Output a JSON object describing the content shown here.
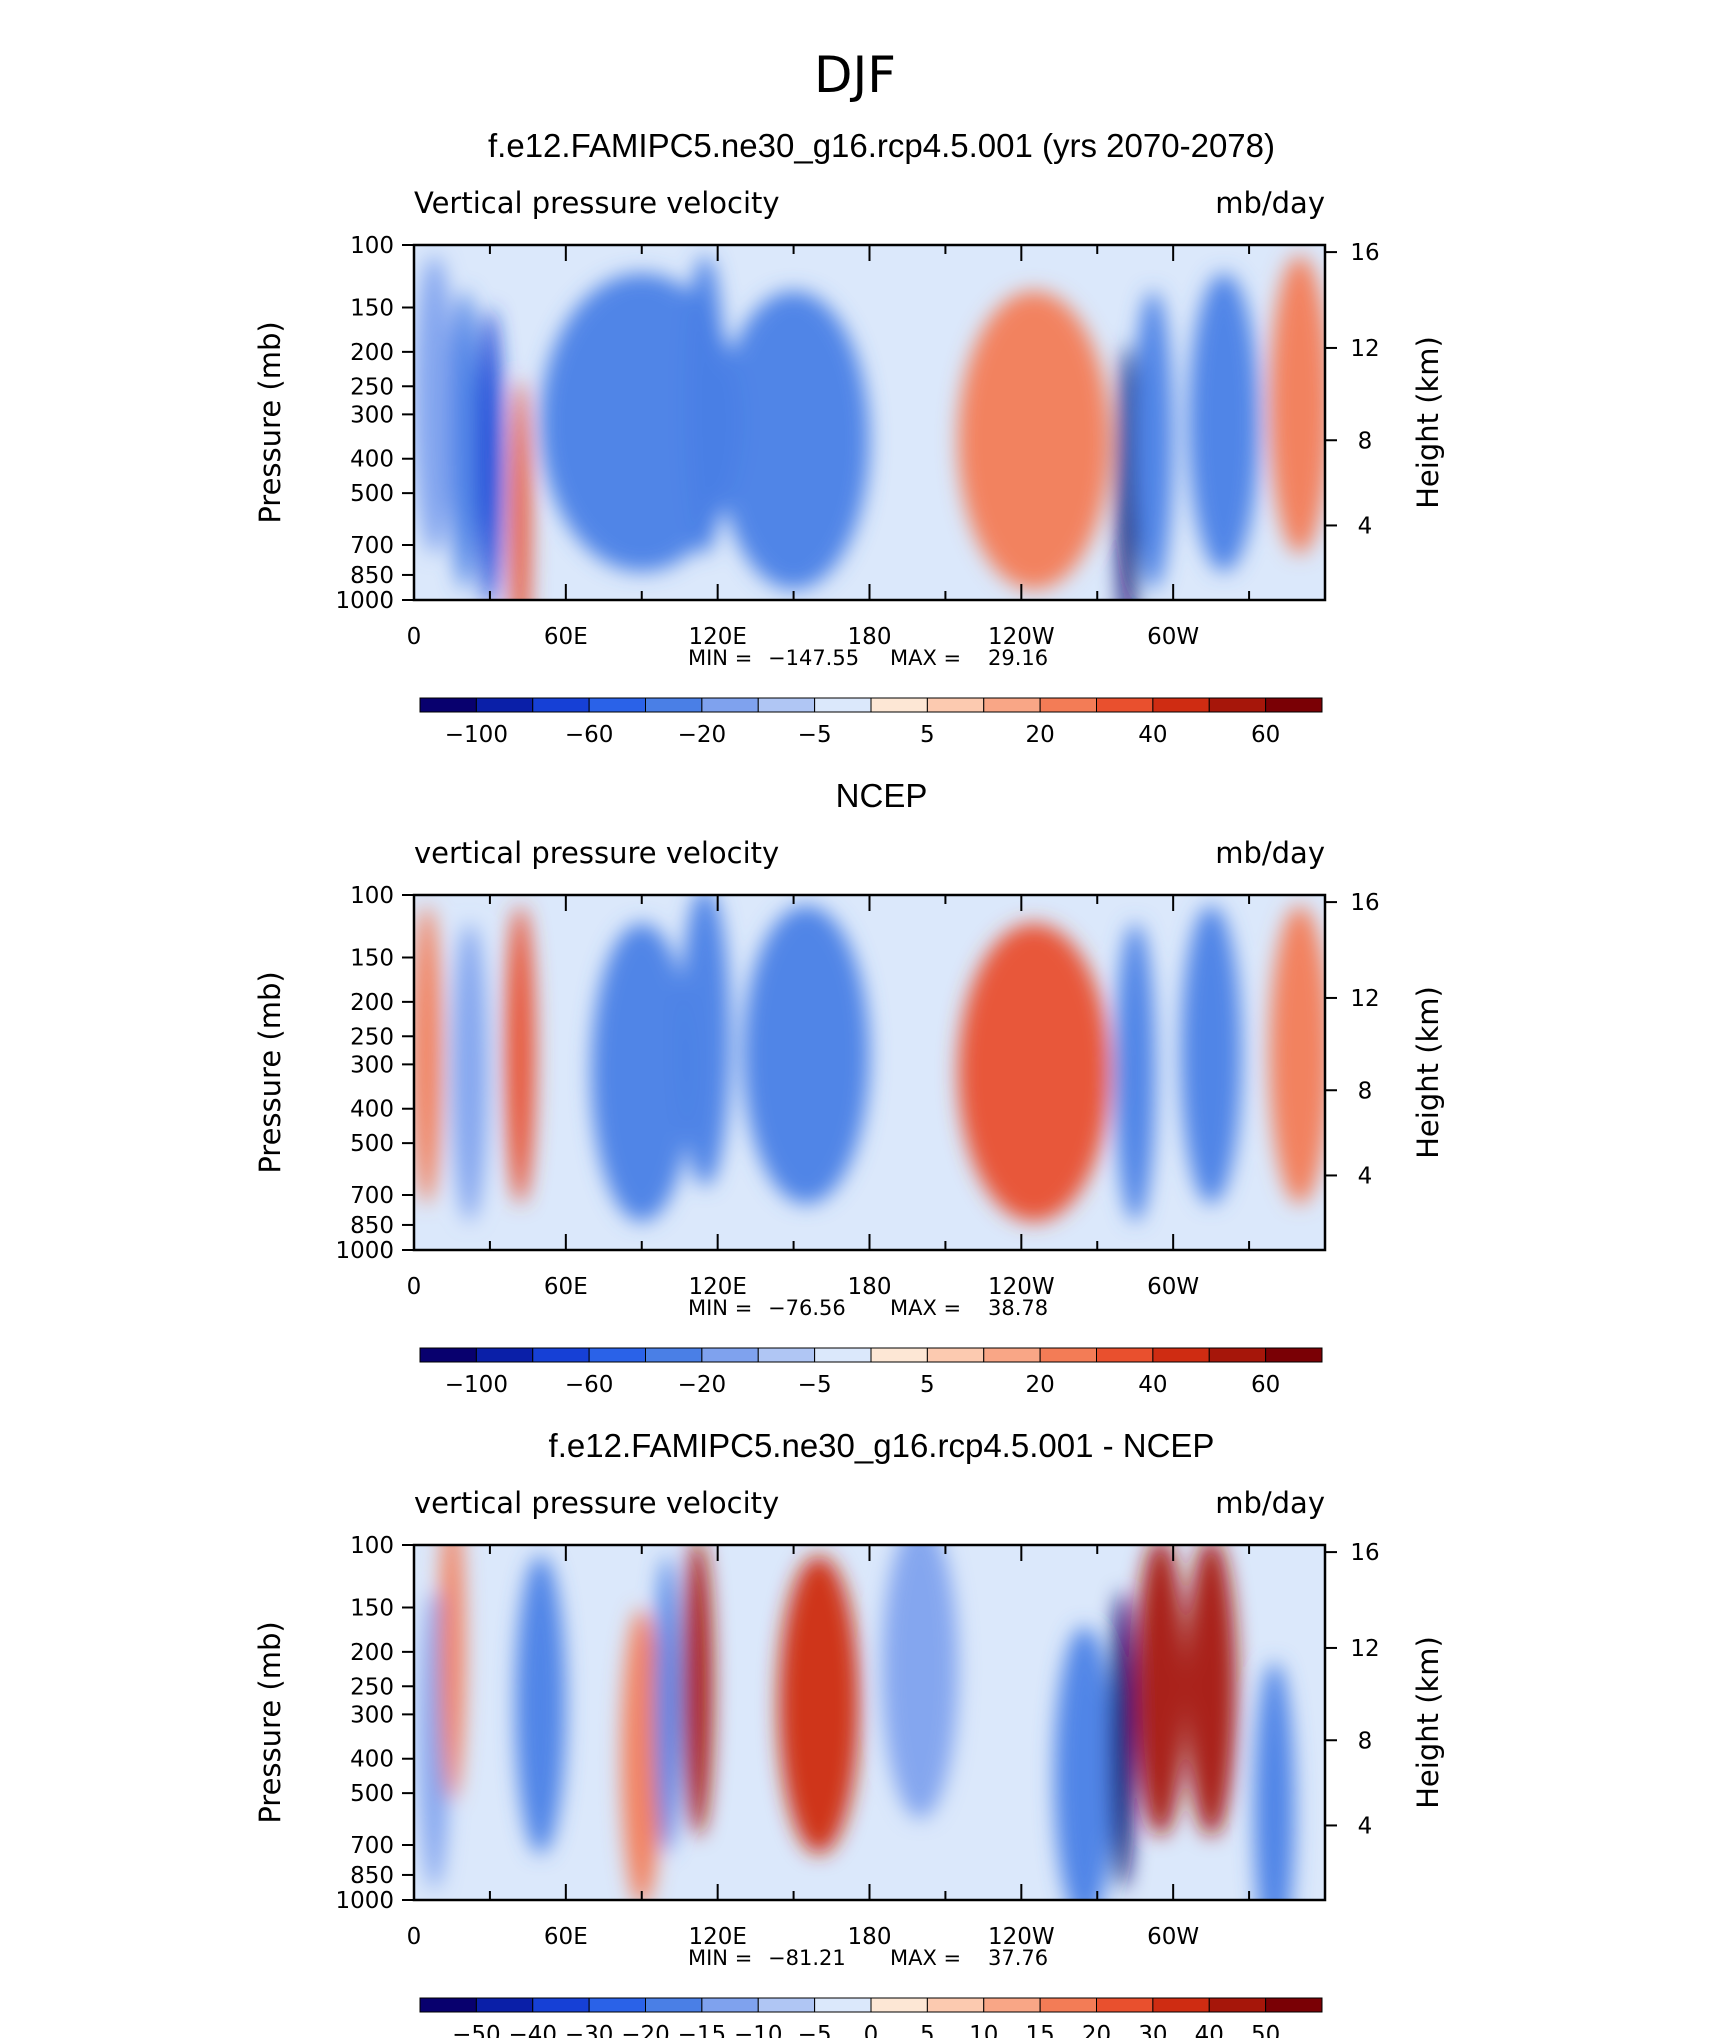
{
  "figure_title": "DJF",
  "colors": {
    "abs_scale": [
      "#08006e",
      "#0a1fa8",
      "#1640d6",
      "#2a62e8",
      "#4a7fe6",
      "#7fa2ee",
      "#b0c6f4",
      "#dbe8fb",
      "#fde7d5",
      "#fccab0",
      "#f9a686",
      "#f37c56",
      "#e9502e",
      "#cf2c12",
      "#a6160a",
      "#7a0005"
    ],
    "diff_scale": [
      "#08006e",
      "#0a1fa8",
      "#1640d6",
      "#2a62e8",
      "#4a7fe6",
      "#7fa2ee",
      "#b0c6f4",
      "#dbe8fb",
      "#fde7d5",
      "#fccab0",
      "#f9a686",
      "#f37c56",
      "#e9502e",
      "#cf2c12",
      "#a6160a",
      "#7a0005"
    ]
  },
  "chart_data": [
    {
      "type": "heatmap",
      "title": "f.e12.FAMIPC5.ne30_g16.rcp4.5.001 (yrs 2070-2078)",
      "variable": "Vertical pressure velocity",
      "units": "mb/day",
      "ylabel": "Pressure (mb)",
      "ylabel_right": "Height (km)",
      "x_ticks": [
        "0",
        "60E",
        "120E",
        "180",
        "120W",
        "60W"
      ],
      "y_ticks": [
        "100",
        "150",
        "200",
        "250",
        "300",
        "400",
        "500",
        "700",
        "850",
        "1000"
      ],
      "y_right_ticks": [
        "16",
        "12",
        "8",
        "4"
      ],
      "min_label": "MIN =",
      "min": "−147.55",
      "max_label": "MAX =",
      "max": "29.16",
      "colorbar_labels": [
        "−100",
        "−60",
        "−20",
        "−5",
        "5",
        "20",
        "40",
        "60"
      ],
      "colorbar_label_index": [
        1,
        3,
        5,
        7,
        9,
        11,
        13,
        15
      ],
      "features": [
        {
          "lon": 8,
          "level": 0.45,
          "value": -30,
          "width": 8
        },
        {
          "lon": 20,
          "level": 0.55,
          "value": -60,
          "width": 6
        },
        {
          "lon": 30,
          "level": 0.6,
          "value": -100,
          "width": 5
        },
        {
          "lon": 42,
          "level": 0.8,
          "value": 30,
          "width": 4
        },
        {
          "lon": 90,
          "level": 0.5,
          "value": -40,
          "width": 40
        },
        {
          "lon": 115,
          "level": 0.45,
          "value": -60,
          "width": 8
        },
        {
          "lon": 150,
          "level": 0.55,
          "value": -45,
          "width": 30
        },
        {
          "lon": 245,
          "level": 0.55,
          "value": 25,
          "width": 30
        },
        {
          "lon": 282,
          "level": 0.7,
          "value": -140,
          "width": 4
        },
        {
          "lon": 292,
          "level": 0.55,
          "value": -60,
          "width": 8
        },
        {
          "lon": 320,
          "level": 0.5,
          "value": -45,
          "width": 14
        },
        {
          "lon": 350,
          "level": 0.45,
          "value": 25,
          "width": 12
        }
      ]
    },
    {
      "type": "heatmap",
      "title": "NCEP",
      "variable": "vertical pressure velocity",
      "units": "mb/day",
      "ylabel": "Pressure (mb)",
      "ylabel_right": "Height (km)",
      "x_ticks": [
        "0",
        "60E",
        "120E",
        "180",
        "120W",
        "60W"
      ],
      "y_ticks": [
        "100",
        "150",
        "200",
        "250",
        "300",
        "400",
        "500",
        "700",
        "850",
        "1000"
      ],
      "y_right_ticks": [
        "16",
        "12",
        "8",
        "4"
      ],
      "min_label": "MIN =",
      "min": "−76.56",
      "max_label": "MAX =",
      "max": "38.78",
      "colorbar_labels": [
        "−100",
        "−60",
        "−20",
        "−5",
        "5",
        "20",
        "40",
        "60"
      ],
      "colorbar_label_index": [
        1,
        3,
        5,
        7,
        9,
        11,
        13,
        15
      ],
      "features": [
        {
          "lon": 5,
          "level": 0.45,
          "value": 20,
          "width": 6
        },
        {
          "lon": 22,
          "level": 0.5,
          "value": -35,
          "width": 7
        },
        {
          "lon": 42,
          "level": 0.45,
          "value": 30,
          "width": 6
        },
        {
          "lon": 90,
          "level": 0.5,
          "value": -40,
          "width": 20
        },
        {
          "lon": 115,
          "level": 0.4,
          "value": -55,
          "width": 10
        },
        {
          "lon": 155,
          "level": 0.45,
          "value": -50,
          "width": 25
        },
        {
          "lon": 245,
          "level": 0.5,
          "value": 30,
          "width": 30
        },
        {
          "lon": 285,
          "level": 0.5,
          "value": -40,
          "width": 8
        },
        {
          "lon": 315,
          "level": 0.45,
          "value": -45,
          "width": 12
        },
        {
          "lon": 350,
          "level": 0.45,
          "value": 25,
          "width": 12
        }
      ]
    },
    {
      "type": "heatmap",
      "title": "f.e12.FAMIPC5.ne30_g16.rcp4.5.001 - NCEP",
      "variable": "vertical pressure velocity",
      "units": "mb/day",
      "ylabel": "Pressure (mb)",
      "ylabel_right": "Height (km)",
      "x_ticks": [
        "0",
        "60E",
        "120E",
        "180",
        "120W",
        "60W"
      ],
      "y_ticks": [
        "100",
        "150",
        "200",
        "250",
        "300",
        "400",
        "500",
        "700",
        "850",
        "1000"
      ],
      "y_right_ticks": [
        "16",
        "12",
        "8",
        "4"
      ],
      "min_label": "MIN =",
      "min": "−81.21",
      "max_label": "MAX =",
      "max": "37.76",
      "colorbar_labels": [
        "−50",
        "−40",
        "−30",
        "−20",
        "−15",
        "−10",
        "−5",
        "0",
        "5",
        "10",
        "15",
        "20",
        "30",
        "40",
        "50"
      ],
      "colorbar_label_index": [
        1,
        2,
        3,
        4,
        5,
        6,
        7,
        8,
        9,
        10,
        11,
        12,
        13,
        14,
        15
      ],
      "features": [
        {
          "lon": 8,
          "level": 0.55,
          "value": -15,
          "width": 6
        },
        {
          "lon": 15,
          "level": 0.3,
          "value": 12,
          "width": 5
        },
        {
          "lon": 50,
          "level": 0.45,
          "value": -25,
          "width": 10
        },
        {
          "lon": 90,
          "level": 0.6,
          "value": 10,
          "width": 8
        },
        {
          "lon": 100,
          "level": 0.45,
          "value": -25,
          "width": 5
        },
        {
          "lon": 112,
          "level": 0.4,
          "value": 30,
          "width": 6
        },
        {
          "lon": 160,
          "level": 0.45,
          "value": 25,
          "width": 16
        },
        {
          "lon": 200,
          "level": 0.35,
          "value": -10,
          "width": 15
        },
        {
          "lon": 265,
          "level": 0.65,
          "value": -30,
          "width": 12
        },
        {
          "lon": 280,
          "level": 0.55,
          "value": -75,
          "width": 5
        },
        {
          "lon": 295,
          "level": 0.4,
          "value": 30,
          "width": 10
        },
        {
          "lon": 315,
          "level": 0.4,
          "value": 30,
          "width": 10
        },
        {
          "lon": 340,
          "level": 0.75,
          "value": -25,
          "width": 8
        }
      ]
    }
  ]
}
